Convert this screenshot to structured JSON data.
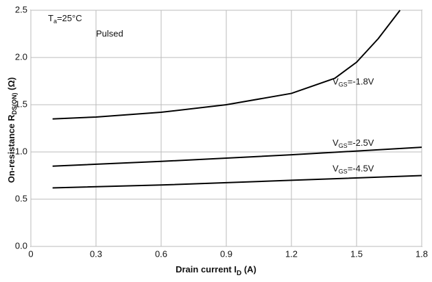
{
  "chart_data": {
    "type": "line",
    "title": {
      "main": "T",
      "sub": "a",
      "rest": "=25°C"
    },
    "subtitle": "Pulsed",
    "x_label": {
      "main": "Drain current I",
      "sub": "D",
      "rest": " (A)"
    },
    "y_label": {
      "main": "On-resistance R",
      "sub": "DS(ON)",
      "rest": " (Ω)"
    },
    "xlim": [
      0,
      1.8
    ],
    "xticks": [
      0,
      0.3,
      0.6,
      0.9,
      1.2,
      1.5,
      1.8
    ],
    "ylim": [
      0,
      2.5
    ],
    "yticks": [
      {
        "value": 0,
        "label": "0.0"
      },
      0.5,
      {
        "value": 1,
        "label": "1.0"
      },
      1.5,
      {
        "value": 2,
        "label": "2.0"
      },
      2.5
    ],
    "grid": true,
    "series": [
      {
        "name": {
          "main": "V",
          "sub": "GS",
          "rest": "=-1.8V"
        },
        "color": "#000000",
        "x": [
          0.1,
          0.3,
          0.6,
          0.9,
          1.2,
          1.4,
          1.5,
          1.6,
          1.7
        ],
        "values": [
          1.35,
          1.37,
          1.42,
          1.5,
          1.62,
          1.78,
          1.95,
          2.2,
          2.5
        ]
      },
      {
        "name": {
          "main": "V",
          "sub": "GS",
          "rest": "=-2.5V"
        },
        "color": "#000000",
        "x": [
          0.1,
          0.6,
          1.2,
          1.8
        ],
        "values": [
          0.85,
          0.9,
          0.97,
          1.05
        ]
      },
      {
        "name": {
          "main": "V",
          "sub": "GS",
          "rest": "=-4.5V"
        },
        "color": "#000000",
        "x": [
          0.1,
          0.6,
          1.2,
          1.8
        ],
        "values": [
          0.62,
          0.65,
          0.7,
          0.75
        ]
      }
    ]
  }
}
